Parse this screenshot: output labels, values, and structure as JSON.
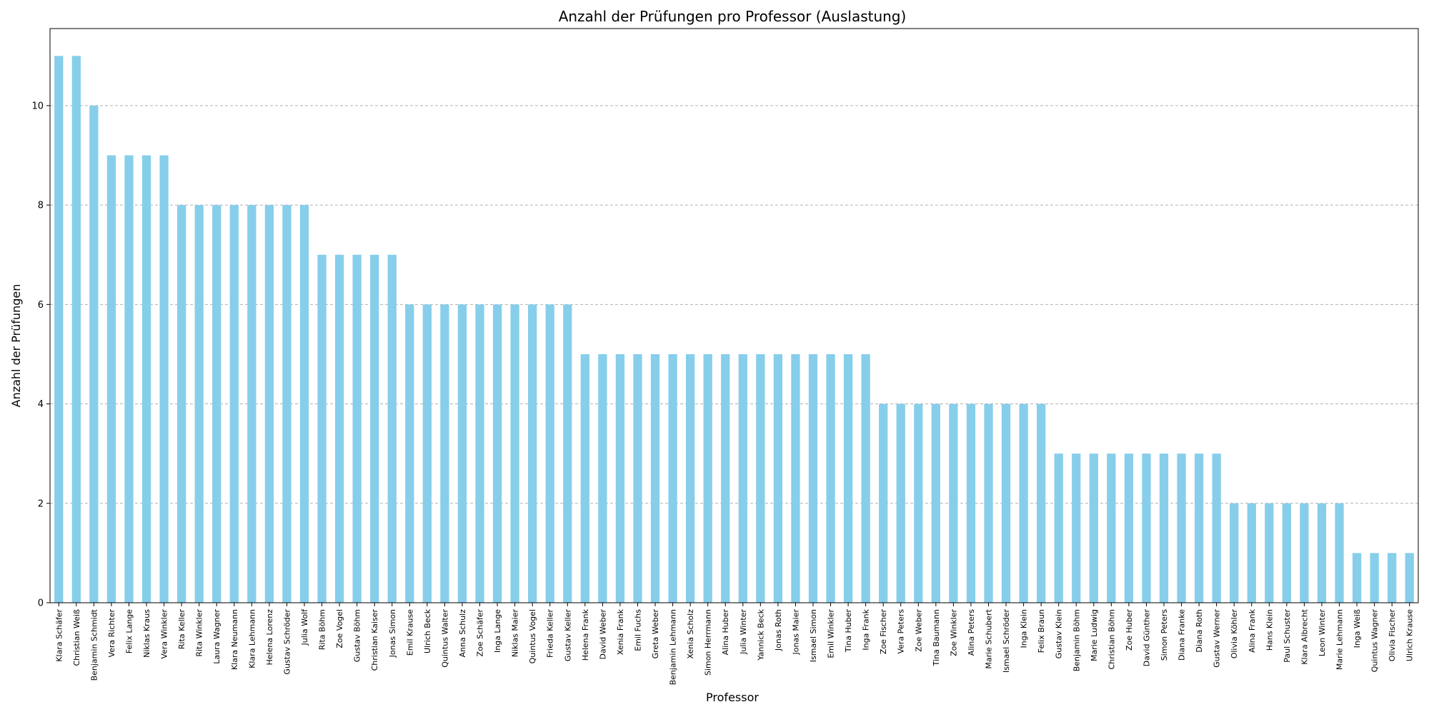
{
  "chart_data": {
    "type": "bar",
    "title": "Anzahl der Prüfungen pro Professor (Auslastung)",
    "xlabel": "Professor",
    "ylabel": "Anzahl der Prüfungen",
    "ylim": [
      0,
      11.55
    ],
    "yticks": [
      0,
      2,
      4,
      6,
      8,
      10
    ],
    "grid": "y-dashed",
    "legend": "none",
    "bar_color": "#87ceeb",
    "grid_color": "#b0b0b0",
    "categories": [
      "Klara Schäfer",
      "Christian Weiß",
      "Benjamin Schmidt",
      "Vera Richter",
      "Felix Lange",
      "Niklas Kraus",
      "Vera Winkler",
      "Rita Keller",
      "Rita Winkler",
      "Laura Wagner",
      "Klara Neumann",
      "Klara Lehmann",
      "Helena Lorenz",
      "Gustav Schröder",
      "Julia Wolf",
      "Rita Böhm",
      "Zoe Vogel",
      "Gustav Böhm",
      "Christian Kaiser",
      "Jonas Simon",
      "Emil Krause",
      "Ulrich Beck",
      "Quintus Walter",
      "Anna Schulz",
      "Zoe Schäfer",
      "Inga Lange",
      "Niklas Maier",
      "Quintus Vogel",
      "Frieda Keller",
      "Gustav Keller",
      "Helena Frank",
      "David Weber",
      "Xenia Frank",
      "Emil Fuchs",
      "Greta Weber",
      "Benjamin Lehmann",
      "Xenia Scholz",
      "Simon Herrmann",
      "Alina Huber",
      "Julia Winter",
      "Yannick Beck",
      "Jonas Roth",
      "Jonas Maier",
      "Ismael Simon",
      "Emil Winkler",
      "Tina Huber",
      "Inga Frank",
      "Zoe Fischer",
      "Vera Peters",
      "Zoe Weber",
      "Tina Baumann",
      "Zoe Winkler",
      "Alina Peters",
      "Marie Schubert",
      "Ismael Schröder",
      "Inga Klein",
      "Felix Braun",
      "Gustav Klein",
      "Benjamin Böhm",
      "Marie Ludwig",
      "Christian Böhm",
      "Zoe Huber",
      "David Günther",
      "Simon Peters",
      "Diana Franke",
      "Diana Roth",
      "Gustav Werner",
      "Olivia Köhler",
      "Alina Frank",
      "Hans Klein",
      "Paul Schuster",
      "Klara Albrecht",
      "Leon Winter",
      "Marie Lehmann",
      "Inga Weiß",
      "Quintus Wagner",
      "Olivia Fischer",
      "Ulrich Krause"
    ],
    "values": [
      11,
      11,
      10,
      9,
      9,
      9,
      9,
      8,
      8,
      8,
      8,
      8,
      8,
      8,
      8,
      7,
      7,
      7,
      7,
      7,
      6,
      6,
      6,
      6,
      6,
      6,
      6,
      6,
      6,
      6,
      5,
      5,
      5,
      5,
      5,
      5,
      5,
      5,
      5,
      5,
      5,
      5,
      5,
      5,
      5,
      5,
      5,
      4,
      4,
      4,
      4,
      4,
      4,
      4,
      4,
      4,
      4,
      3,
      3,
      3,
      3,
      3,
      3,
      3,
      3,
      3,
      3,
      2,
      2,
      2,
      2,
      2,
      2,
      2,
      1,
      1,
      1,
      1
    ]
  }
}
